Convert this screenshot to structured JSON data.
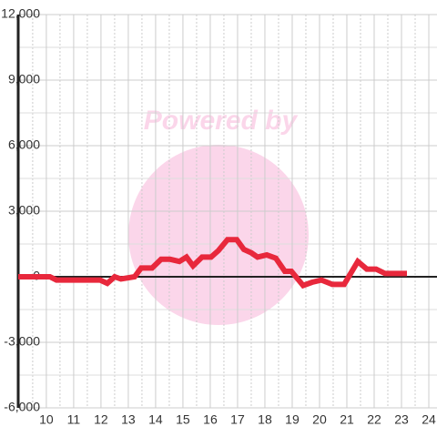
{
  "chart_data": {
    "type": "line",
    "watermark": "Powered by",
    "x": [
      8.97,
      10.13,
      10.37,
      11.97,
      12.23,
      12.5,
      12.73,
      13.23,
      13.47,
      13.87,
      14.2,
      14.53,
      14.87,
      15.13,
      15.37,
      15.7,
      16.03,
      16.3,
      16.63,
      16.97,
      17.23,
      17.5,
      17.73,
      18.07,
      18.4,
      18.73,
      18.97,
      19.4,
      19.73,
      20.07,
      20.47,
      20.9,
      21.4,
      21.73,
      22.07,
      22.4,
      23.2
    ],
    "series": [
      {
        "color": "#e8283c",
        "values": [
          0,
          0,
          -150,
          -150,
          -300,
          0,
          -100,
          0,
          400,
          400,
          800,
          800,
          700,
          900,
          500,
          900,
          900,
          1200,
          1700,
          1700,
          1250,
          1100,
          900,
          1000,
          850,
          250,
          250,
          -400,
          -250,
          -150,
          -350,
          -350,
          700,
          350,
          350,
          150,
          150
        ]
      }
    ],
    "xlim": [
      8.97,
      24.3
    ],
    "xticks": [
      10,
      11,
      12,
      13,
      14,
      15,
      16,
      17,
      18,
      19,
      20,
      21,
      22,
      23,
      24
    ],
    "x_minor_ticks": [
      9.5,
      10.5,
      11.5,
      12.5,
      13.5,
      14.5,
      15.5,
      16.5,
      17.5,
      18.5,
      19.5,
      20.5,
      21.5,
      22.5,
      23.5
    ],
    "ylim": [
      -6000,
      12000
    ],
    "yticks": [
      {
        "value": -6000,
        "label": "-6,000"
      },
      {
        "value": -3000,
        "label": "-3,000"
      },
      0,
      {
        "value": 3000,
        "label": "3,000"
      },
      {
        "value": 6000,
        "label": "6,000"
      },
      {
        "value": 9000,
        "label": "9,000"
      },
      {
        "value": 12000,
        "label": "12,000"
      }
    ],
    "y_minor_ticks": [
      -4500,
      -1500,
      1500,
      4500,
      7500,
      10500
    ],
    "grid": true
  }
}
